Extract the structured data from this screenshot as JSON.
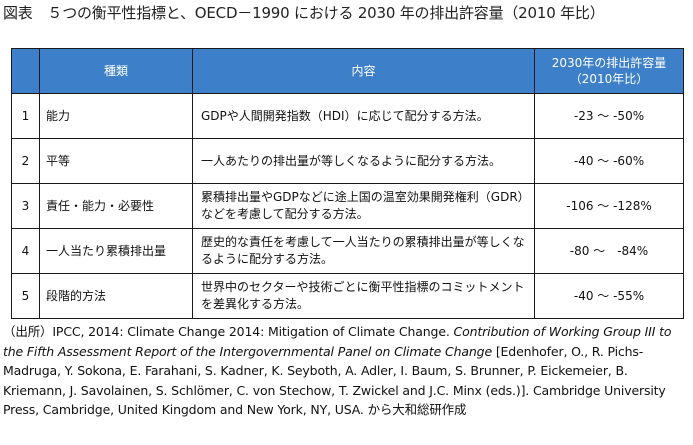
{
  "title": "図表　５つの衡平性指標と、OECD－1990 における 2030 年の排出許容量（2010 年比）",
  "table": {
    "headers": {
      "type": "種類",
      "content": "内容",
      "range_line1": "2030年の排出許容量",
      "range_line2": "（2010年比）"
    },
    "rows": [
      {
        "num": "1",
        "type": "能力",
        "content": "GDPや人間開発指数（HDI）に応じて配分する方法。",
        "range": "-23 ～ -50%"
      },
      {
        "num": "2",
        "type": "平等",
        "content": "一人あたりの排出量が等しくなるように配分する方法。",
        "range": "-40 ～ -60%"
      },
      {
        "num": "3",
        "type": "責任・能力・必要性",
        "content": "累積排出量やGDPなどに途上国の温室効果開発権利（GDR）などを考慮して配分する方法。",
        "range": "-106 ～ -128%"
      },
      {
        "num": "4",
        "type": "一人当たり累積排出量",
        "content": "歴史的な責任を考慮して一人当たりの累積排出量が等しくなるように配分する方法。",
        "range": "-80 ～　-84%"
      },
      {
        "num": "5",
        "type": "段階的方法",
        "content": "世界中のセクターや技術ごとに衡平性指標のコミットメントを差異化する方法。",
        "range": "-40 ～ -55%"
      }
    ]
  },
  "source": {
    "prefix": "（出所）IPCC, 2014: Climate Change 2014: Mitigation of Climate Change. ",
    "italic": "Contribution of Working Group III to the Fifth Assessment Report of the Intergovernmental Panel on Climate Change",
    "suffix": " [Edenhofer, O., R. Pichs-Madruga, Y. Sokona, E. Farahani, S. Kadner, K. Seyboth, A. Adler, I. Baum, S. Brunner, P. Eickemeier, B. Kriemann, J. Savolainen, S. Schlömer, C. von Stechow, T. Zwickel and J.C. Minx (eds.)]. Cambridge University Press, Cambridge, United Kingdom and New York, NY, USA. から大和総研作成"
  }
}
